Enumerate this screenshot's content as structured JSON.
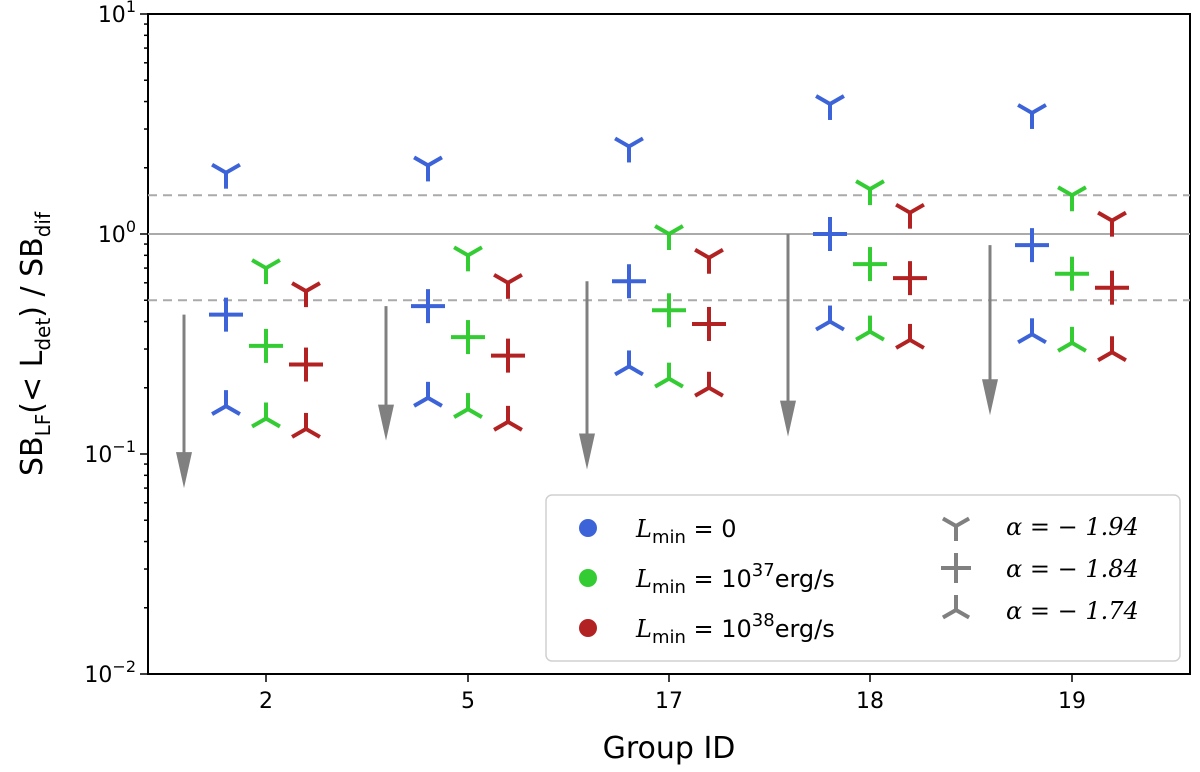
{
  "chart_data": {
    "type": "scatter",
    "title": "",
    "xlabel": "Group ID",
    "ylabel": {
      "base": "SB",
      "sub1": "LF",
      "mid": "(< L",
      "sub2": "det",
      "end": ") / SB",
      "sub3": "dif"
    },
    "yscale": "log",
    "ylim": [
      0.01,
      10
    ],
    "categories": [
      "2",
      "5",
      "17",
      "18",
      "19"
    ],
    "reference_lines": {
      "solid": 1.0,
      "dashed": [
        0.5,
        1.5
      ]
    },
    "series": [
      {
        "name": "L_min = 0",
        "color": "#3c63d8",
        "alpha_neg_1_94": [
          1.9,
          2.05,
          2.5,
          3.9,
          3.55
        ],
        "alpha_neg_1_84": [
          0.43,
          0.47,
          0.61,
          1.0,
          0.89
        ],
        "alpha_neg_1_74": [
          0.165,
          0.18,
          0.25,
          0.4,
          0.35
        ]
      },
      {
        "name": "L_min = 10^37 erg/s",
        "color": "#33cc33",
        "alpha_neg_1_94": [
          0.7,
          0.8,
          1.0,
          1.6,
          1.5
        ],
        "alpha_neg_1_84": [
          0.31,
          0.34,
          0.45,
          0.73,
          0.66
        ],
        "alpha_neg_1_74": [
          0.145,
          0.16,
          0.22,
          0.36,
          0.32
        ]
      },
      {
        "name": "L_min = 10^38 erg/s",
        "color": "#b22222",
        "alpha_neg_1_94": [
          0.55,
          0.6,
          0.78,
          1.25,
          1.15
        ],
        "alpha_neg_1_84": [
          0.255,
          0.28,
          0.39,
          0.63,
          0.57
        ],
        "alpha_neg_1_74": [
          0.13,
          0.14,
          0.2,
          0.33,
          0.29
        ]
      }
    ],
    "upper_limits": {
      "color": "#808080",
      "top": [
        0.43,
        0.47,
        0.61,
        1.0,
        0.89
      ],
      "bottom": [
        0.07,
        0.115,
        0.085,
        0.12,
        0.15
      ]
    },
    "legend": {
      "position": "lower-right",
      "colors": [
        {
          "lhs": "L",
          "sub": "min",
          "rhs": " = 0",
          "sup": "",
          "tail": ""
        },
        {
          "lhs": "L",
          "sub": "min",
          "rhs": " = 10",
          "sup": "37",
          "tail": "erg/s"
        },
        {
          "lhs": "L",
          "sub": "min",
          "rhs": " = 10",
          "sup": "38",
          "tail": "erg/s"
        }
      ],
      "markers": [
        {
          "label": "α = − 1.94"
        },
        {
          "label": "α = − 1.84"
        },
        {
          "label": "α = − 1.74"
        }
      ]
    },
    "y_ticks": [
      {
        "base": "10",
        "exp": "1",
        "value": 10
      },
      {
        "base": "10",
        "exp": "0",
        "value": 1
      },
      {
        "base": "10",
        "exp": "−1",
        "value": 0.1
      },
      {
        "base": "10",
        "exp": "−2",
        "value": 0.01
      }
    ]
  }
}
